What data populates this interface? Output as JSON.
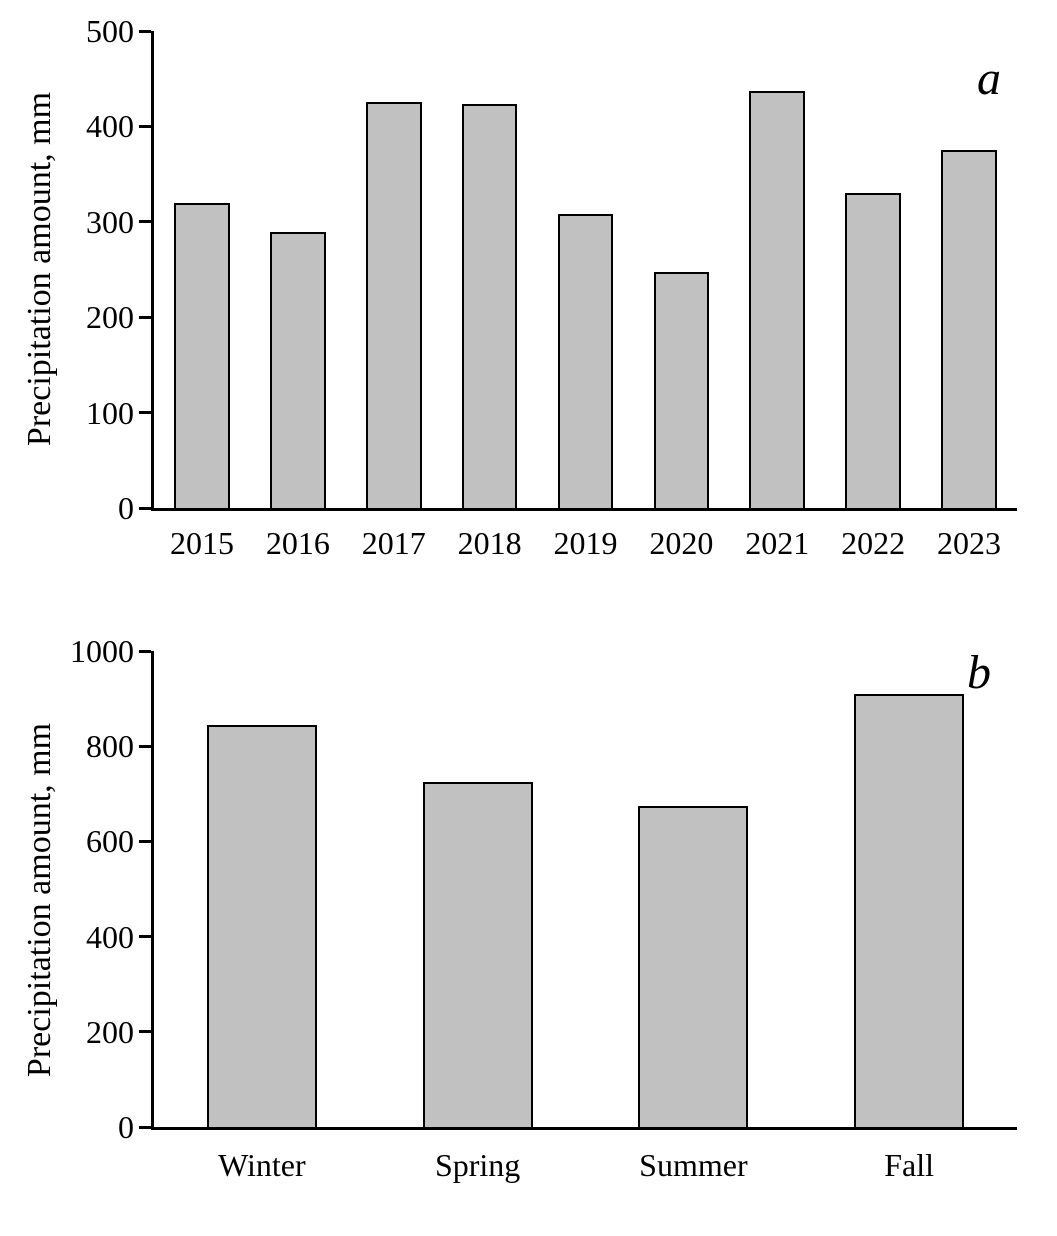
{
  "figure": {
    "background_color": "#ffffff",
    "text_color": "#000000"
  },
  "chart_data": [
    {
      "type": "bar",
      "panel_label": "a",
      "title": "",
      "xlabel": "",
      "ylabel": "Precipitation amount, mm",
      "categories": [
        "2015",
        "2016",
        "2017",
        "2018",
        "2019",
        "2020",
        "2021",
        "2022",
        "2023"
      ],
      "values": [
        320,
        289,
        426,
        424,
        308,
        247,
        437,
        330,
        375
      ],
      "ylim": [
        0,
        500
      ],
      "yticks": [
        0,
        100,
        200,
        300,
        400,
        500
      ],
      "grid": "off",
      "legend": "none",
      "bar_fill": "#c1c1c1",
      "bar_border": "#000000"
    },
    {
      "type": "bar",
      "panel_label": "b",
      "title": "",
      "xlabel": "",
      "ylabel": "Precipitation amount, mm",
      "categories": [
        "Winter",
        "Spring",
        "Summer",
        "Fall"
      ],
      "values": [
        845,
        725,
        675,
        910
      ],
      "ylim": [
        0,
        1000
      ],
      "yticks": [
        0,
        200,
        400,
        600,
        800,
        1000
      ],
      "grid": "off",
      "legend": "none",
      "bar_fill": "#c1c1c1",
      "bar_border": "#000000"
    }
  ]
}
